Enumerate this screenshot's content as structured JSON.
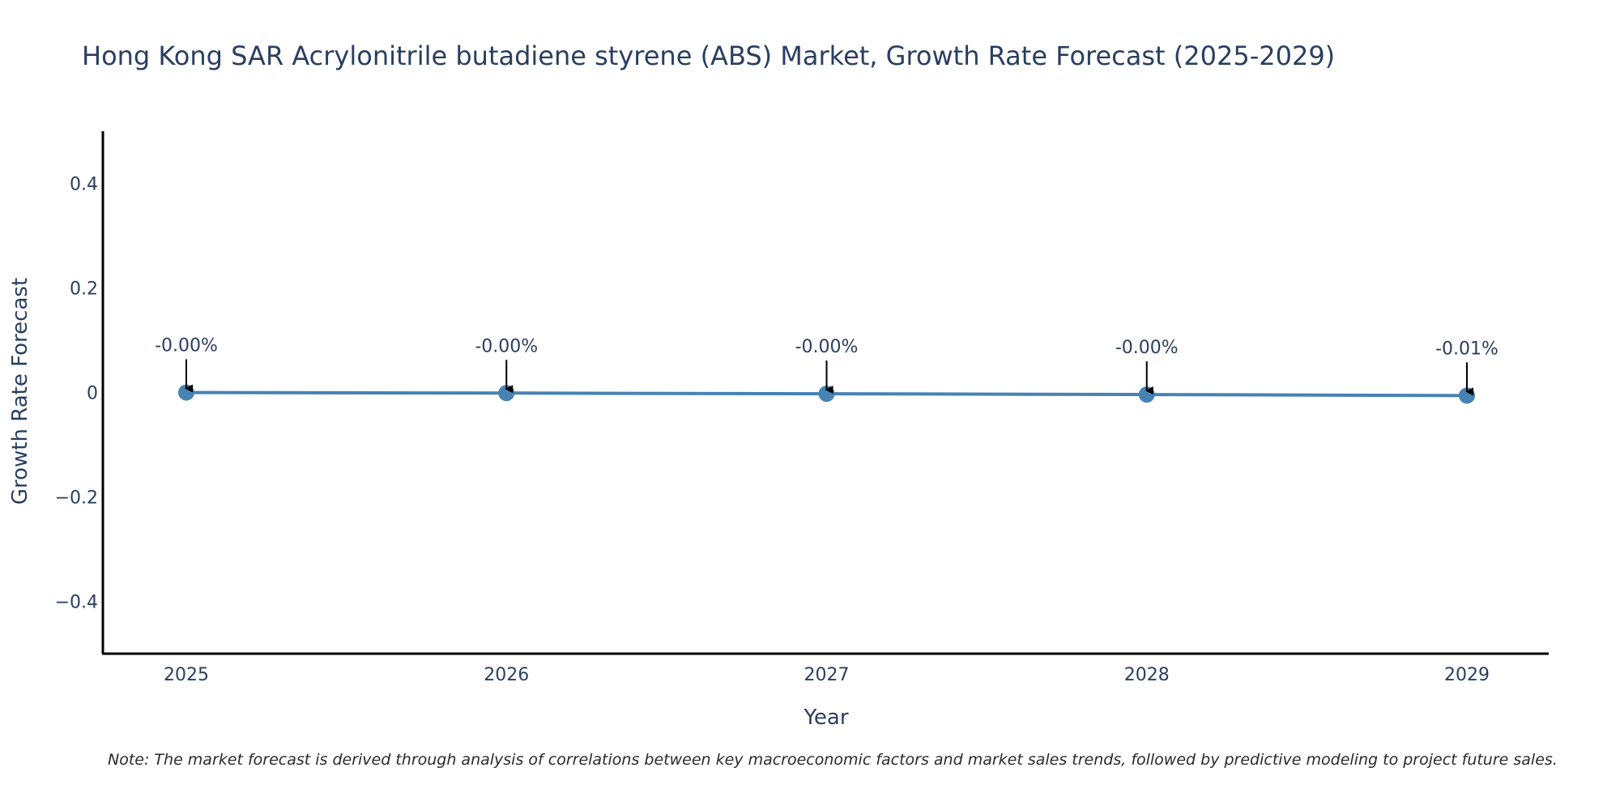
{
  "chart_data": {
    "type": "line",
    "title": "Hong Kong SAR Acrylonitrile butadiene styrene (ABS) Market, Growth Rate Forecast (2025-2029)",
    "xlabel": "Year",
    "ylabel": "Growth Rate Forecast",
    "categories": [
      "2025",
      "2026",
      "2027",
      "2028",
      "2029"
    ],
    "values": [
      -0.0001,
      -0.0012,
      -0.0025,
      -0.004,
      -0.006
    ],
    "data_labels": [
      "-0.00%",
      "-0.00%",
      "-0.00%",
      "-0.00%",
      "-0.01%"
    ],
    "ylim": [
      -0.5,
      0.5
    ],
    "yticks": [
      -0.4,
      -0.2,
      0,
      0.2,
      0.4
    ],
    "ytick_labels": [
      "−0.4",
      "−0.2",
      "0",
      "0.2",
      "0.4"
    ],
    "grid": false,
    "legend": "none",
    "line_color": "#4682b4",
    "marker_color": "#4682b4",
    "axis_color": "#000000",
    "note": "Note: The market forecast is derived through analysis of correlations between key macroeconomic factors and market sales trends, followed by predictive modeling to project future sales."
  }
}
